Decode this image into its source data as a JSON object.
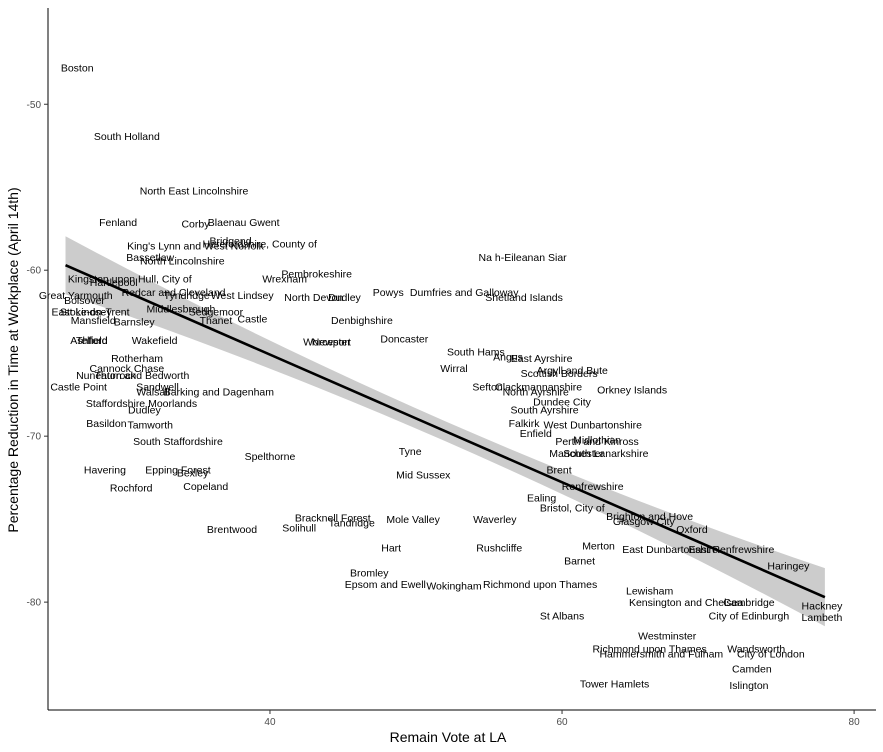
{
  "chart_data": {
    "type": "scatter",
    "title": "",
    "xlabel": "Remain Vote at LA",
    "ylabel": "Percentage Reduction in Time at Workplace (April 14th)",
    "xlim": [
      24.8,
      81.5
    ],
    "ylim": [
      -86.5,
      -44.2
    ],
    "x_ticks": [
      40,
      60,
      80
    ],
    "y_ticks": [
      -50,
      -60,
      -70,
      -80
    ],
    "grid": false,
    "fit": {
      "method": "lm",
      "x": [
        26,
        78
      ],
      "y": [
        -59.7,
        -79.7
      ],
      "se_color": "#cccccc",
      "line_color": "#000000"
    },
    "points": [
      {
        "label": "Boston",
        "x": 26.8,
        "y": -47.8
      },
      {
        "label": "South Holland",
        "x": 30.2,
        "y": -51.9
      },
      {
        "label": "North East Lincolnshire",
        "x": 34.8,
        "y": -55.2
      },
      {
        "label": "Fenland",
        "x": 29.6,
        "y": -57.1
      },
      {
        "label": "Corby",
        "x": 34.9,
        "y": -57.2
      },
      {
        "label": "Blaenau Gwent",
        "x": 38.2,
        "y": -57.1
      },
      {
        "label": "Bridgend",
        "x": 37.3,
        "y": -58.2
      },
      {
        "label": "King's Lynn and West Norfolk",
        "x": 34.9,
        "y": -58.5
      },
      {
        "label": "Herefordshire, County of",
        "x": 39.3,
        "y": -58.4
      },
      {
        "label": "Bassetlaw",
        "x": 31.8,
        "y": -59.2
      },
      {
        "label": "North Lincolnshire",
        "x": 34.0,
        "y": -59.4
      },
      {
        "label": "Na h-Eileanan Siar",
        "x": 57.3,
        "y": -59.2
      },
      {
        "label": "Kingston upon Hull, City of",
        "x": 30.4,
        "y": -60.5
      },
      {
        "label": "Hartlepool",
        "x": 29.3,
        "y": -60.7
      },
      {
        "label": "Pembrokeshire",
        "x": 43.2,
        "y": -60.2
      },
      {
        "label": "Wrexham",
        "x": 41.0,
        "y": -60.5
      },
      {
        "label": "Redcar and Cleveland",
        "x": 33.4,
        "y": -61.3
      },
      {
        "label": "Great Yarmouth",
        "x": 26.7,
        "y": -61.5
      },
      {
        "label": "Tyndridge",
        "x": 34.3,
        "y": -61.5
      },
      {
        "label": "West Lindsey",
        "x": 38.1,
        "y": -61.5
      },
      {
        "label": "North Devon",
        "x": 43.0,
        "y": -61.6
      },
      {
        "label": "Dudley",
        "x": 45.1,
        "y": -61.6
      },
      {
        "label": "Powys",
        "x": 48.1,
        "y": -61.3
      },
      {
        "label": "Dumfries and Galloway",
        "x": 53.3,
        "y": -61.3
      },
      {
        "label": "Shetland Islands",
        "x": 57.4,
        "y": -61.6
      },
      {
        "label": "Bolsover",
        "x": 27.3,
        "y": -61.8
      },
      {
        "label": "Middlesbrough",
        "x": 33.9,
        "y": -62.3
      },
      {
        "label": "East Lindsey",
        "x": 27.1,
        "y": -62.5
      },
      {
        "label": "Stoke-on-Trent",
        "x": 28.0,
        "y": -62.5
      },
      {
        "label": "Sedgemoor",
        "x": 36.3,
        "y": -62.5
      },
      {
        "label": "Mansfield",
        "x": 27.9,
        "y": -63.0
      },
      {
        "label": "Barnsley",
        "x": 30.7,
        "y": -63.1
      },
      {
        "label": "Thanet",
        "x": 36.3,
        "y": -63.0
      },
      {
        "label": "Castle",
        "x": 38.8,
        "y": -62.9
      },
      {
        "label": "Denbighshire",
        "x": 46.3,
        "y": -63.0
      },
      {
        "label": "Ashfield",
        "x": 27.6,
        "y": -64.2
      },
      {
        "label": "Telford",
        "x": 27.8,
        "y": -64.2
      },
      {
        "label": "Wakefield",
        "x": 32.1,
        "y": -64.2
      },
      {
        "label": "Rotherham",
        "x": 30.9,
        "y": -65.3
      },
      {
        "label": "Doncaster",
        "x": 49.2,
        "y": -64.1
      },
      {
        "label": "Worcester",
        "x": 43.9,
        "y": -64.3
      },
      {
        "label": "Newport",
        "x": 44.2,
        "y": -64.3
      },
      {
        "label": "South Hams",
        "x": 54.1,
        "y": -64.9
      },
      {
        "label": "Angus",
        "x": 56.3,
        "y": -65.2
      },
      {
        "label": "East Ayrshire",
        "x": 58.6,
        "y": -65.3
      },
      {
        "label": "Cannock Chase",
        "x": 30.2,
        "y": -65.9
      },
      {
        "label": "Thurrock",
        "x": 29.4,
        "y": -66.3
      },
      {
        "label": "Nuneaton and Bedworth",
        "x": 30.6,
        "y": -66.3
      },
      {
        "label": "Argyll and Bute",
        "x": 60.7,
        "y": -66.0
      },
      {
        "label": "Scottish Borders",
        "x": 59.8,
        "y": -66.2
      },
      {
        "label": "Wirral",
        "x": 52.6,
        "y": -65.9
      },
      {
        "label": "Castle Point",
        "x": 26.9,
        "y": -67.0
      },
      {
        "label": "Sandwell",
        "x": 32.3,
        "y": -67.0
      },
      {
        "label": "Clackmannanshire",
        "x": 58.4,
        "y": -67.0
      },
      {
        "label": "Sefton",
        "x": 54.9,
        "y": -67.0
      },
      {
        "label": "Walsall",
        "x": 32.0,
        "y": -67.3
      },
      {
        "label": "Barking and Dagenham",
        "x": 36.5,
        "y": -67.3
      },
      {
        "label": "North Ayrshire",
        "x": 58.2,
        "y": -67.3
      },
      {
        "label": "Orkney Islands",
        "x": 64.8,
        "y": -67.2
      },
      {
        "label": "Staffordshire Moorlands",
        "x": 31.2,
        "y": -68.0
      },
      {
        "label": "Dundee City",
        "x": 60.0,
        "y": -67.9
      },
      {
        "label": "Dudley",
        "x": 31.4,
        "y": -68.4
      },
      {
        "label": "South Ayrshire",
        "x": 58.8,
        "y": -68.4
      },
      {
        "label": "Basildon",
        "x": 28.8,
        "y": -69.2
      },
      {
        "label": "Tamworth",
        "x": 31.8,
        "y": -69.3
      },
      {
        "label": "Enfield",
        "x": 58.2,
        "y": -69.8
      },
      {
        "label": "Falkirk",
        "x": 57.4,
        "y": -69.2
      },
      {
        "label": "West Dunbartonshire",
        "x": 62.1,
        "y": -69.3
      },
      {
        "label": "South Staffordshire",
        "x": 33.7,
        "y": -70.3
      },
      {
        "label": "Perth and Kinross",
        "x": 62.4,
        "y": -70.3
      },
      {
        "label": "Midlothian",
        "x": 62.4,
        "y": -70.2
      },
      {
        "label": "Tyne",
        "x": 49.6,
        "y": -70.9
      },
      {
        "label": "Spelthorne",
        "x": 40.0,
        "y": -71.2
      },
      {
        "label": "Manchester",
        "x": 61.0,
        "y": -71.0
      },
      {
        "label": "South Lanarkshire",
        "x": 63.0,
        "y": -71.0
      },
      {
        "label": "Havering",
        "x": 28.7,
        "y": -72.0
      },
      {
        "label": "Epping Forest",
        "x": 33.7,
        "y": -72.0
      },
      {
        "label": "Bexley",
        "x": 34.7,
        "y": -72.2
      },
      {
        "label": "Brent",
        "x": 59.8,
        "y": -72.0
      },
      {
        "label": "Mid Sussex",
        "x": 50.5,
        "y": -72.3
      },
      {
        "label": "Rochford",
        "x": 30.5,
        "y": -73.1
      },
      {
        "label": "Copeland",
        "x": 35.6,
        "y": -73.0
      },
      {
        "label": "Renfrewshire",
        "x": 62.1,
        "y": -73.0
      },
      {
        "label": "Ealing",
        "x": 58.6,
        "y": -73.7
      },
      {
        "label": "Bristol, City of",
        "x": 60.7,
        "y": -74.3
      },
      {
        "label": "Brighton and Hove",
        "x": 66.0,
        "y": -74.8
      },
      {
        "label": "Glasgow City",
        "x": 65.6,
        "y": -75.1
      },
      {
        "label": "Bracknell Forest",
        "x": 44.3,
        "y": -74.9
      },
      {
        "label": "Tandridge",
        "x": 45.6,
        "y": -75.2
      },
      {
        "label": "Mole Valley",
        "x": 49.8,
        "y": -75.0
      },
      {
        "label": "Waverley",
        "x": 55.4,
        "y": -75.0
      },
      {
        "label": "Brentwood",
        "x": 37.4,
        "y": -75.6
      },
      {
        "label": "Solihull",
        "x": 42.0,
        "y": -75.5
      },
      {
        "label": "Oxford",
        "x": 68.9,
        "y": -75.6
      },
      {
        "label": "Hart",
        "x": 48.3,
        "y": -76.7
      },
      {
        "label": "Rushcliffe",
        "x": 55.7,
        "y": -76.7
      },
      {
        "label": "Merton",
        "x": 62.5,
        "y": -76.6
      },
      {
        "label": "East Dunbartonshire",
        "x": 67.4,
        "y": -76.8
      },
      {
        "label": "East Renfrewshire",
        "x": 71.6,
        "y": -76.8
      },
      {
        "label": "Barnet",
        "x": 61.2,
        "y": -77.5
      },
      {
        "label": "Haringey",
        "x": 75.5,
        "y": -77.8
      },
      {
        "label": "Bromley",
        "x": 46.8,
        "y": -78.2
      },
      {
        "label": "Epsom and Ewell",
        "x": 47.9,
        "y": -78.9
      },
      {
        "label": "Wokingham",
        "x": 52.6,
        "y": -79.0
      },
      {
        "label": "Richmond upon Thames",
        "x": 58.5,
        "y": -78.9
      },
      {
        "label": "Lewisham",
        "x": 66.0,
        "y": -79.3
      },
      {
        "label": "Kensington and Chelsea",
        "x": 68.5,
        "y": -80.0
      },
      {
        "label": "Cambridge",
        "x": 72.8,
        "y": -80.0
      },
      {
        "label": "Hackney",
        "x": 77.8,
        "y": -80.2
      },
      {
        "label": "City of Edinburgh",
        "x": 72.8,
        "y": -80.8
      },
      {
        "label": "Lambeth",
        "x": 77.8,
        "y": -80.9
      },
      {
        "label": "St Albans",
        "x": 60.0,
        "y": -80.8
      },
      {
        "label": "Westminster",
        "x": 67.2,
        "y": -82.0
      },
      {
        "label": "Richmond upon Thames",
        "x": 66.0,
        "y": -82.8
      },
      {
        "label": "Wandsworth",
        "x": 73.3,
        "y": -82.8
      },
      {
        "label": "Hammersmith and Fulham",
        "x": 66.8,
        "y": -83.1
      },
      {
        "label": "City of London",
        "x": 74.3,
        "y": -83.1
      },
      {
        "label": "Camden",
        "x": 73.0,
        "y": -84.0
      },
      {
        "label": "Tower Hamlets",
        "x": 63.6,
        "y": -84.9
      },
      {
        "label": "Islington",
        "x": 72.8,
        "y": -85.0
      }
    ]
  }
}
